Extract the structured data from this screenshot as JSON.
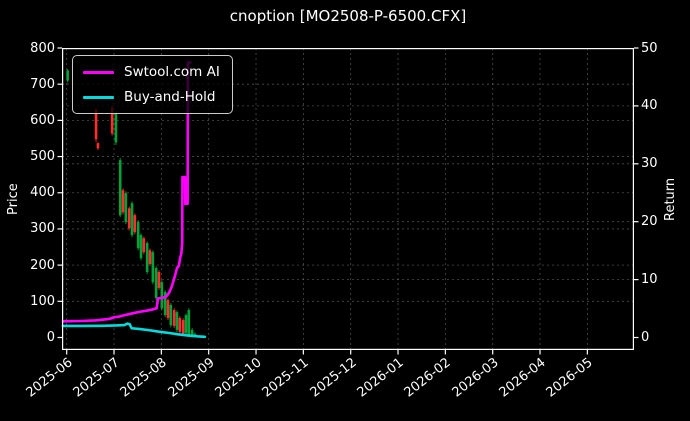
{
  "title": "cnoption [MO2508-P-6500.CFX]",
  "legend": {
    "items": [
      {
        "label": "Swtool.com AI",
        "color": "#ff00ff"
      },
      {
        "label": "Buy-and-Hold",
        "color": "#00dcdc"
      }
    ]
  },
  "chart_data": {
    "type": "candlestick+line",
    "title": "cnoption [MO2508-P-6500.CFX]",
    "background": "#000000",
    "text_color": "#ffffff",
    "grid": true,
    "legend_position": "upper left",
    "price_axis": {
      "label": "Price",
      "ticks": [
        0,
        100,
        200,
        300,
        400,
        500,
        600,
        700,
        800
      ],
      "top": 800,
      "bottom_at_spine": -35
    },
    "return_axis": {
      "label": "Return",
      "ticks": [
        0,
        10,
        20,
        30,
        40,
        50
      ],
      "top": 50,
      "bottom_at_spine": -2.2
    },
    "x_axis": {
      "tick_labels": [
        "2025-06",
        "2025-07",
        "2025-08",
        "2025-09",
        "2025-10",
        "2025-11",
        "2025-12",
        "2026-01",
        "2026-02",
        "2026-03",
        "2026-04",
        "2026-05"
      ],
      "unit_note": "m = months after the 2025-06 tick"
    },
    "up_color": "#ff2e2e",
    "down_color": "#00a43a",
    "candles_format": "[m, open, high, low, close] on price axis; red = up day, green = down day",
    "candles": [
      [
        0.02,
        738,
        742,
        705,
        710
      ],
      [
        0.62,
        548,
        635,
        540,
        630
      ],
      [
        0.66,
        523,
        540,
        518,
        537
      ],
      [
        0.96,
        564,
        641,
        558,
        636
      ],
      [
        1.04,
        617,
        625,
        532,
        539
      ],
      [
        1.13,
        490,
        496,
        333,
        338
      ],
      [
        1.19,
        346,
        412,
        340,
        407
      ],
      [
        1.25,
        399,
        404,
        313,
        319
      ],
      [
        1.32,
        302,
        362,
        296,
        357
      ],
      [
        1.38,
        371,
        376,
        277,
        283
      ],
      [
        1.44,
        291,
        343,
        285,
        338
      ],
      [
        1.51,
        319,
        324,
        241,
        247
      ],
      [
        1.57,
        283,
        288,
        213,
        219
      ],
      [
        1.63,
        236,
        279,
        230,
        274
      ],
      [
        1.7,
        261,
        266,
        175,
        181
      ],
      [
        1.76,
        203,
        246,
        197,
        241
      ],
      [
        1.82,
        236,
        241,
        147,
        153
      ],
      [
        1.89,
        192,
        197,
        103,
        109
      ],
      [
        1.95,
        137,
        186,
        131,
        181
      ],
      [
        2.01,
        153,
        158,
        75,
        81
      ],
      [
        2.08,
        126,
        131,
        56,
        62
      ],
      [
        2.14,
        54,
        108,
        48,
        103
      ],
      [
        2.2,
        90,
        95,
        28,
        34
      ],
      [
        2.27,
        32,
        81,
        26,
        76
      ],
      [
        2.33,
        70,
        75,
        15,
        21
      ],
      [
        2.39,
        15,
        59,
        9,
        54
      ],
      [
        2.46,
        10,
        53,
        4,
        48
      ],
      [
        2.52,
        62,
        67,
        6,
        12
      ],
      [
        2.58,
        76,
        81,
        2,
        4
      ],
      [
        2.65,
        21,
        26,
        1,
        3
      ],
      [
        2.71,
        10,
        14,
        1,
        2
      ]
    ],
    "series": [
      {
        "name": "Swtool.com AI",
        "color": "#ff00ff",
        "axis": "return",
        "linewidth": 2.6,
        "points": [
          [
            -0.08,
            2.8
          ],
          [
            0.3,
            2.85
          ],
          [
            0.6,
            2.95
          ],
          [
            0.9,
            3.2
          ],
          [
            1.0,
            3.5
          ],
          [
            1.1,
            3.6
          ],
          [
            1.25,
            3.9
          ],
          [
            1.4,
            4.2
          ],
          [
            1.55,
            4.45
          ],
          [
            1.7,
            4.65
          ],
          [
            1.82,
            4.85
          ],
          [
            1.9,
            5.05
          ],
          [
            1.93,
            6.75
          ],
          [
            2.02,
            6.85
          ],
          [
            2.1,
            7.05
          ],
          [
            2.16,
            7.7
          ],
          [
            2.22,
            8.8
          ],
          [
            2.28,
            10.4
          ],
          [
            2.33,
            12.0
          ],
          [
            2.37,
            12.4
          ],
          [
            2.4,
            13.9
          ],
          [
            2.42,
            14.4
          ],
          [
            2.44,
            16.3
          ],
          [
            2.445,
            27.7
          ],
          [
            2.5,
            27.7
          ],
          [
            2.505,
            23.1
          ],
          [
            2.555,
            23.1
          ],
          [
            2.56,
            47.5
          ],
          [
            2.61,
            47.5
          ]
        ]
      },
      {
        "name": "Buy-and-Hold",
        "color": "#00dcdc",
        "axis": "return",
        "linewidth": 2.6,
        "points": [
          [
            -0.08,
            2.0
          ],
          [
            0.35,
            2.0
          ],
          [
            0.75,
            2.02
          ],
          [
            1.05,
            2.08
          ],
          [
            1.22,
            2.15
          ],
          [
            1.28,
            2.4
          ],
          [
            1.33,
            2.3
          ],
          [
            1.37,
            1.6
          ],
          [
            1.55,
            1.45
          ],
          [
            1.75,
            1.25
          ],
          [
            1.95,
            1.0
          ],
          [
            2.15,
            0.8
          ],
          [
            2.35,
            0.55
          ],
          [
            2.55,
            0.35
          ],
          [
            2.75,
            0.2
          ],
          [
            2.92,
            0.12
          ]
        ]
      }
    ]
  }
}
